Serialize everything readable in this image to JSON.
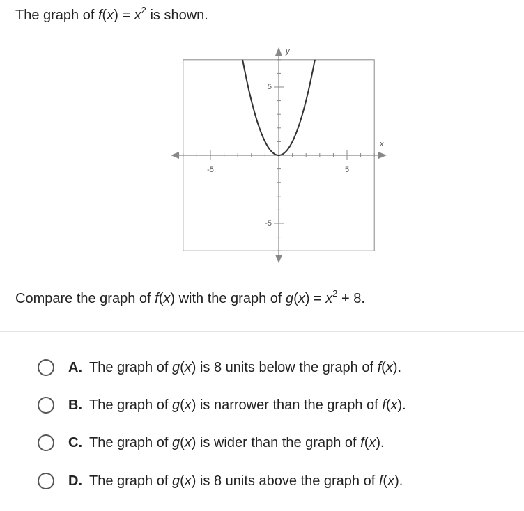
{
  "intro": [
    "The graph of ",
    "f",
    "(",
    "x",
    ") = ",
    "x",
    "2",
    " is shown."
  ],
  "graph": {
    "xlim": [
      -7,
      7
    ],
    "ylim": [
      -7,
      7
    ],
    "xticks": [
      -5,
      5
    ],
    "yticks": [
      -5,
      5
    ],
    "xlabel": "x",
    "ylabel": "y"
  },
  "compare": [
    "Compare the graph of ",
    "f",
    "(",
    "x",
    ") with the graph of ",
    "g",
    "(",
    "x",
    ") = ",
    "x",
    "2",
    " + 8."
  ],
  "options": [
    {
      "letter": "A.",
      "text": [
        "The graph of ",
        "g",
        "(",
        "x",
        ") is 8 units below the graph of ",
        "f",
        "(",
        "x",
        ")."
      ]
    },
    {
      "letter": "B.",
      "text": [
        "The graph of ",
        "g",
        "(",
        "x",
        ") is narrower than the graph of ",
        "f",
        "(",
        "x",
        ")."
      ]
    },
    {
      "letter": "C.",
      "text": [
        "The graph of ",
        "g",
        "(",
        "x",
        ") is wider than the graph of ",
        "f",
        "(",
        "x",
        ")."
      ]
    },
    {
      "letter": "D.",
      "text": [
        "The graph of ",
        "g",
        "(",
        "x",
        ") is 8 units above the graph of ",
        "f",
        "(",
        "x",
        ")."
      ]
    }
  ]
}
